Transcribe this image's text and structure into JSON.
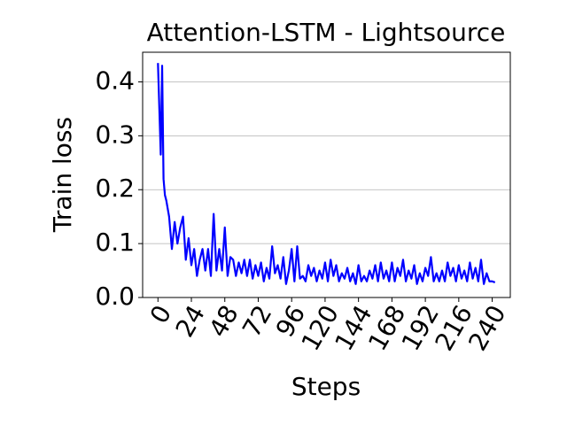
{
  "chart_data": {
    "type": "line",
    "title": "Attention-LSTM - Lightsource",
    "xlabel": "Steps",
    "ylabel": "Train loss",
    "x": [
      0,
      2,
      3,
      4,
      5,
      6,
      8,
      10,
      12,
      14,
      16,
      18,
      20,
      22,
      24,
      26,
      28,
      30,
      32,
      34,
      36,
      38,
      40,
      42,
      44,
      46,
      48,
      50,
      52,
      54,
      56,
      58,
      60,
      62,
      64,
      66,
      68,
      70,
      72,
      74,
      76,
      78,
      80,
      82,
      84,
      86,
      88,
      90,
      92,
      94,
      96,
      98,
      100,
      102,
      104,
      106,
      108,
      110,
      112,
      114,
      116,
      118,
      120,
      122,
      124,
      126,
      128,
      130,
      132,
      134,
      136,
      138,
      140,
      142,
      144,
      146,
      148,
      150,
      152,
      154,
      156,
      158,
      160,
      162,
      164,
      166,
      168,
      170,
      172,
      174,
      176,
      178,
      180,
      182,
      184,
      186,
      188,
      190,
      192,
      194,
      196,
      198,
      200,
      202,
      204,
      206,
      208,
      210,
      212,
      214,
      216,
      218,
      220,
      222,
      224,
      226,
      228,
      230,
      232,
      234,
      236,
      238,
      240,
      242
    ],
    "series": [
      {
        "name": "Train loss",
        "color": "#0000ff",
        "values": [
          0.435,
          0.265,
          0.43,
          0.22,
          0.19,
          0.18,
          0.15,
          0.09,
          0.14,
          0.1,
          0.13,
          0.15,
          0.07,
          0.11,
          0.06,
          0.09,
          0.04,
          0.07,
          0.09,
          0.05,
          0.09,
          0.04,
          0.155,
          0.05,
          0.09,
          0.05,
          0.13,
          0.04,
          0.075,
          0.07,
          0.04,
          0.065,
          0.045,
          0.07,
          0.04,
          0.07,
          0.035,
          0.06,
          0.04,
          0.065,
          0.03,
          0.055,
          0.035,
          0.095,
          0.045,
          0.06,
          0.035,
          0.075,
          0.025,
          0.05,
          0.09,
          0.03,
          0.095,
          0.035,
          0.04,
          0.03,
          0.06,
          0.04,
          0.055,
          0.03,
          0.05,
          0.035,
          0.065,
          0.03,
          0.07,
          0.04,
          0.06,
          0.03,
          0.045,
          0.035,
          0.055,
          0.03,
          0.045,
          0.025,
          0.06,
          0.03,
          0.04,
          0.03,
          0.05,
          0.035,
          0.06,
          0.03,
          0.065,
          0.035,
          0.05,
          0.03,
          0.065,
          0.03,
          0.055,
          0.04,
          0.07,
          0.03,
          0.05,
          0.035,
          0.06,
          0.025,
          0.045,
          0.03,
          0.055,
          0.04,
          0.075,
          0.03,
          0.045,
          0.03,
          0.05,
          0.03,
          0.065,
          0.04,
          0.055,
          0.03,
          0.06,
          0.035,
          0.05,
          0.03,
          0.065,
          0.035,
          0.055,
          0.03,
          0.07,
          0.025,
          0.045,
          0.03,
          0.03,
          0.028
        ]
      }
    ],
    "xlim": [
      -11,
      253
    ],
    "ylim": [
      0,
      0.455
    ],
    "xticks": [
      0,
      24,
      48,
      72,
      96,
      120,
      144,
      168,
      192,
      216,
      240
    ],
    "yticks": [
      {
        "value": 0,
        "label": "0.0"
      },
      0.1,
      0.2,
      0.3,
      0.4
    ],
    "grid": "y"
  }
}
